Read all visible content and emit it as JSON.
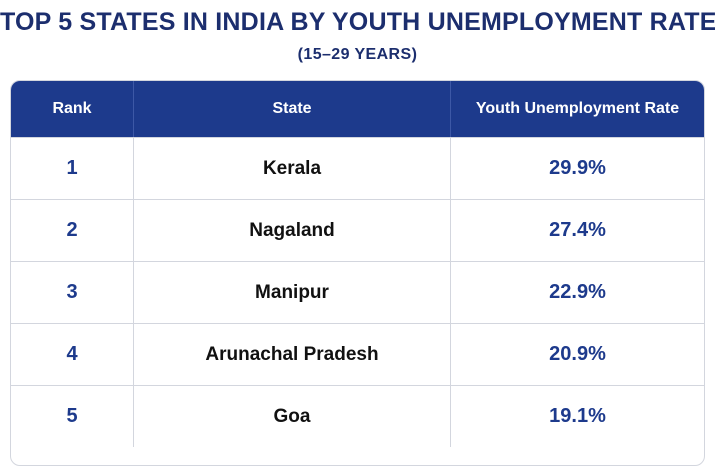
{
  "title": "TOP 5 STATES IN INDIA BY YOUTH UNEMPLOYMENT RATE",
  "subtitle": "(15–29 YEARS)",
  "colors": {
    "title": "#1c2e6e",
    "header_bg": "#1d3a8c",
    "header_text": "#ffffff",
    "rank_and_rate_text": "#1d3a8c",
    "state_text": "#111111",
    "grid_lines": "#d3d6de"
  },
  "chart_data": {
    "type": "table",
    "title": "TOP 5 STATES IN INDIA BY YOUTH UNEMPLOYMENT RATE",
    "subtitle": "(15–29 YEARS)",
    "columns": [
      "Rank",
      "State",
      "Youth Unemployment Rate"
    ],
    "rows": [
      [
        "1",
        "Kerala",
        "29.9%"
      ],
      [
        "2",
        "Nagaland",
        "27.4%"
      ],
      [
        "3",
        "Manipur",
        "22.9%"
      ],
      [
        "4",
        "Arunachal Pradesh",
        "20.9%"
      ],
      [
        "5",
        "Goa",
        "19.1%"
      ]
    ]
  }
}
